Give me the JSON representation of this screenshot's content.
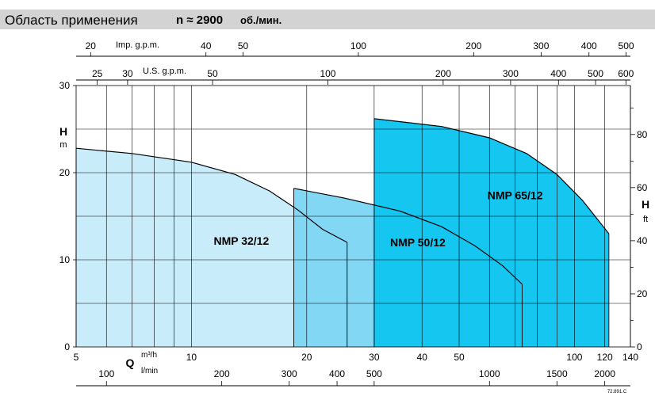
{
  "header": {
    "title": "Область применения",
    "speed": "n ≈ 2900",
    "speed_unit": "об./мин."
  },
  "code": "72.891.C",
  "chart_data": {
    "type": "area",
    "x_scale": "log",
    "xlim": [
      5,
      140
    ],
    "ylim": [
      0,
      30
    ],
    "x_ticks": [
      5,
      10,
      20,
      30,
      40,
      50,
      100,
      120,
      140
    ],
    "x_minor_ticks": [
      6,
      7,
      8,
      9,
      60,
      70,
      80,
      90
    ],
    "y_ticks": [
      0,
      10,
      20,
      30
    ],
    "y_gridlines": [
      5,
      10,
      15,
      20,
      25
    ],
    "grid": true,
    "x_unit_label": {
      "symbol": "Q",
      "unit_top": "m³/h",
      "unit_bottom": "l/min"
    },
    "y_left_label": {
      "symbol": "H",
      "unit": "m"
    },
    "y_right_label": {
      "symbol": "H",
      "unit": "ft"
    },
    "lmin_ticks": [
      100,
      200,
      300,
      400,
      500,
      1000,
      1500,
      2000
    ],
    "imp_gpm_label": "Imp. g.p.m.",
    "imp_gpm_ticks": [
      20,
      40,
      50,
      100,
      200,
      300,
      400,
      500
    ],
    "us_gpm_label": "U.S. g.p.m.",
    "us_gpm_ticks": [
      25,
      30,
      50,
      100,
      200,
      300,
      400,
      500,
      600
    ],
    "ft_ticks": [
      0,
      20,
      40,
      60,
      80
    ],
    "ft_minor_ticks": [
      10,
      30,
      50,
      70,
      90
    ],
    "series": [
      {
        "name": "NMP 32/12",
        "color": "#c8ecfa",
        "label_at": [
          13.5,
          12.2
        ],
        "x_left": 5,
        "x_right": 25.5,
        "curve": [
          [
            5,
            22.8
          ],
          [
            7,
            22.2
          ],
          [
            10,
            21.2
          ],
          [
            13,
            19.8
          ],
          [
            16,
            17.9
          ],
          [
            19,
            15.7
          ],
          [
            22,
            13.5
          ],
          [
            25.5,
            12.0
          ]
        ]
      },
      {
        "name": "NMP 50/12",
        "color": "#82d7f5",
        "label_at": [
          39,
          12.0
        ],
        "x_left": 18.5,
        "x_right": 73,
        "curve": [
          [
            18.5,
            18.2
          ],
          [
            25,
            17.1
          ],
          [
            35,
            15.6
          ],
          [
            45,
            13.8
          ],
          [
            55,
            11.6
          ],
          [
            65,
            9.3
          ],
          [
            73,
            7.2
          ]
        ]
      },
      {
        "name": "NMP 65/12",
        "color": "#15c6f0",
        "label_at": [
          70,
          17.4
        ],
        "x_left": 30,
        "x_right": 123,
        "curve": [
          [
            30,
            26.2
          ],
          [
            45,
            25.3
          ],
          [
            60,
            24.0
          ],
          [
            75,
            22.2
          ],
          [
            90,
            19.8
          ],
          [
            105,
            16.8
          ],
          [
            123,
            13.0
          ]
        ]
      }
    ]
  }
}
